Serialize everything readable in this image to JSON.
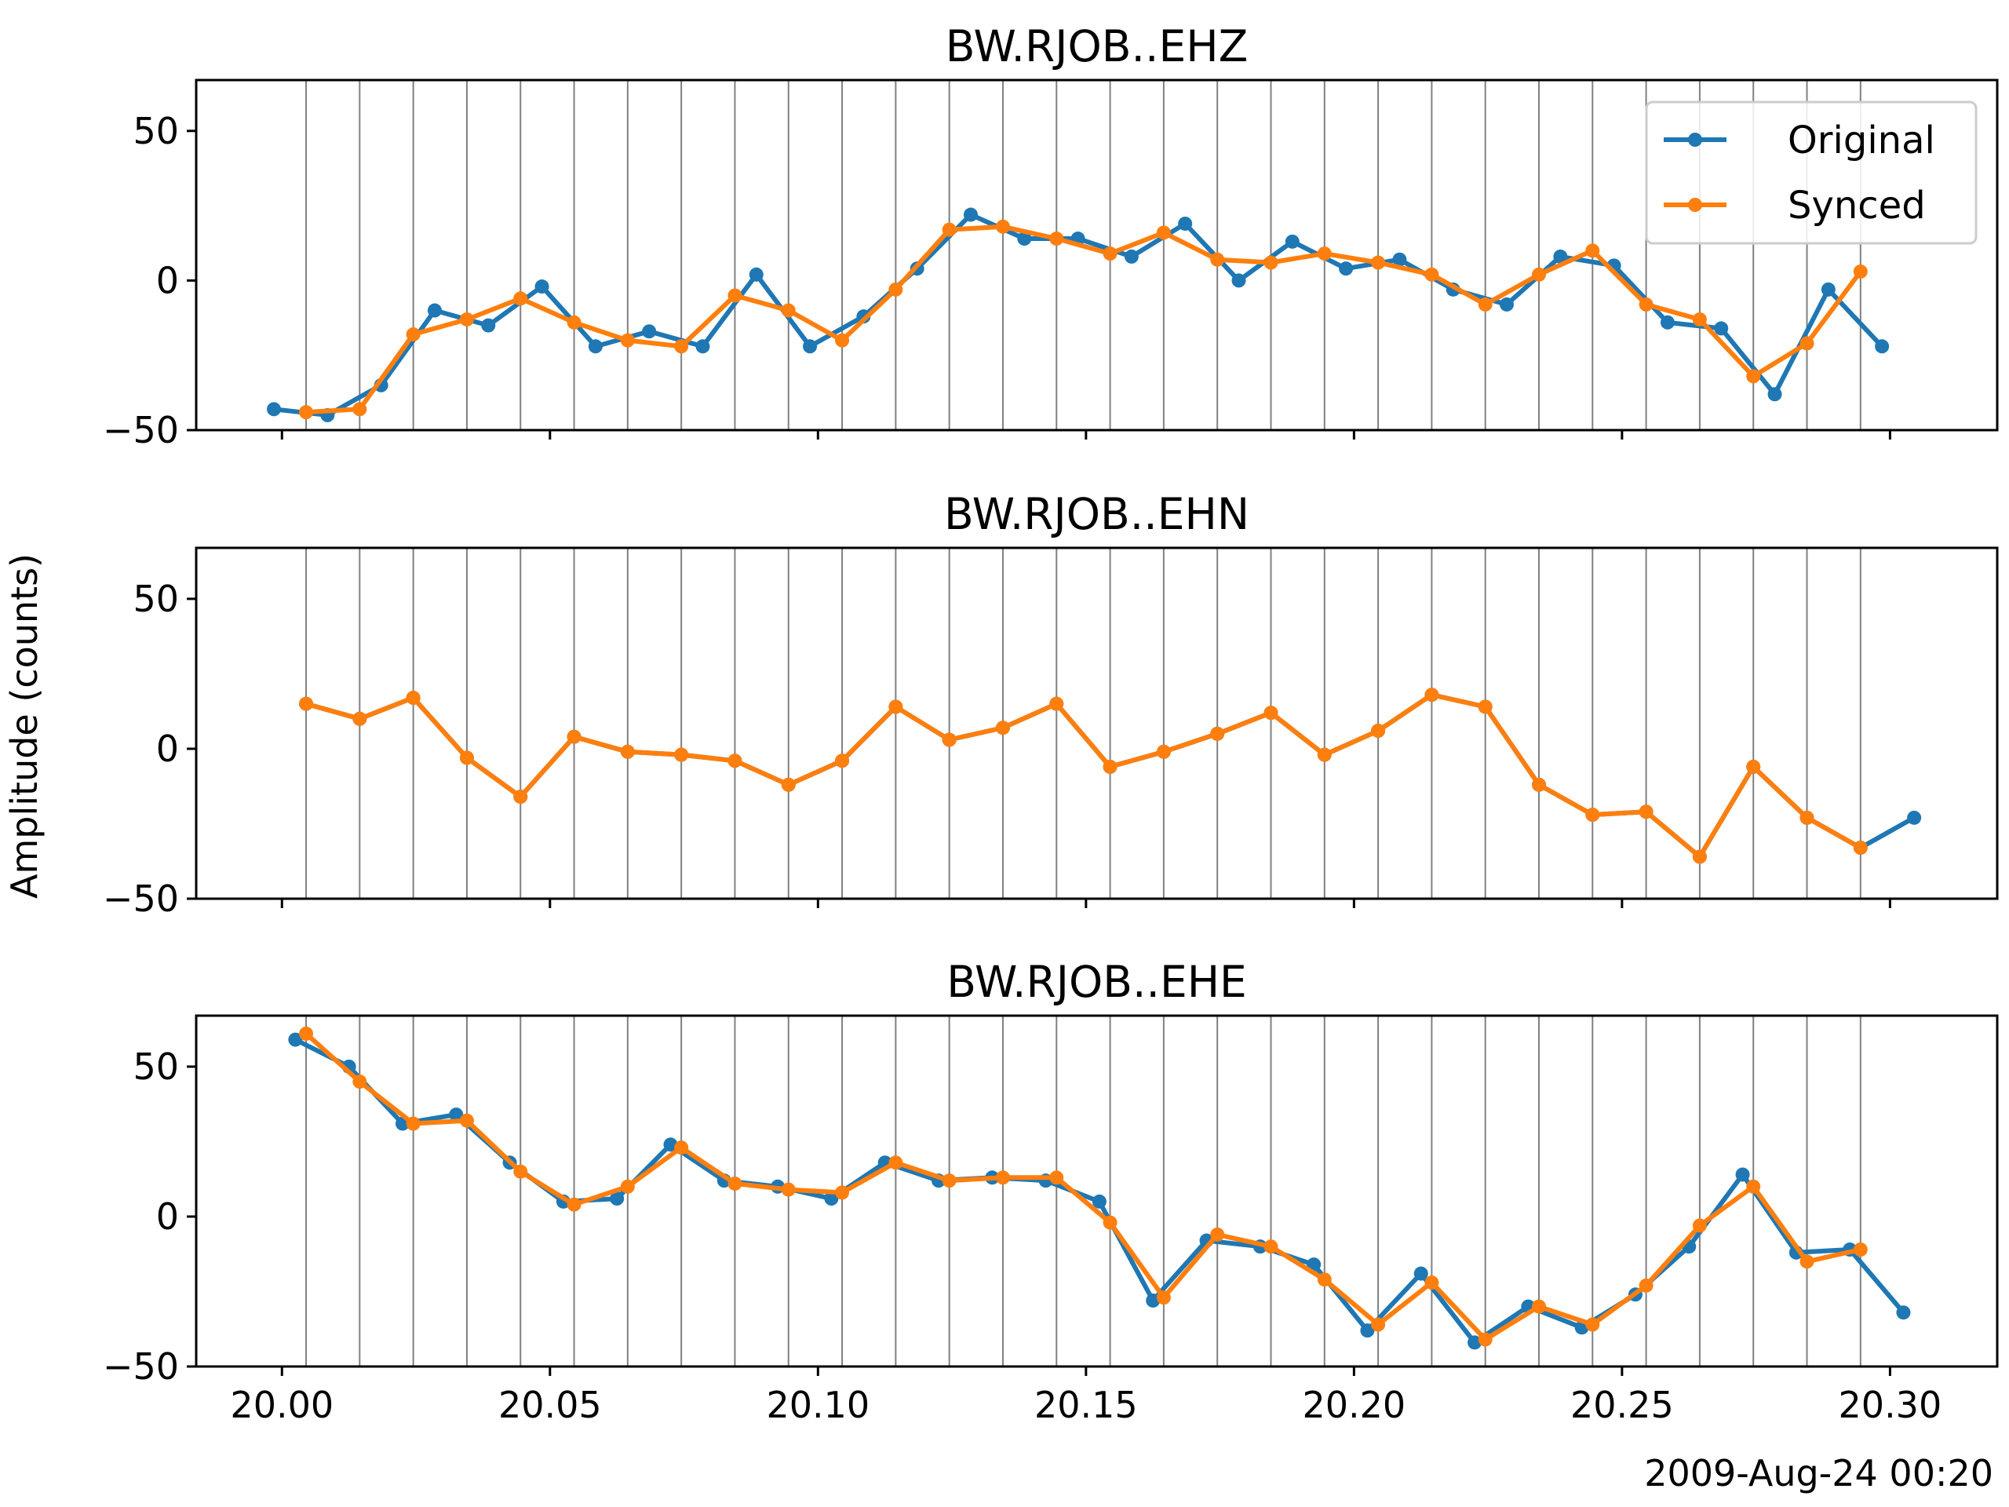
{
  "chart_data": {
    "type": "line",
    "ylabel": "Amplitude (counts)",
    "x_date_label": "2009-Aug-24 00:20",
    "x_ticks": [
      "20.00",
      "20.05",
      "20.10",
      "20.15",
      "20.20",
      "20.25",
      "20.30"
    ],
    "xlim": [
      19.984,
      20.32
    ],
    "ylim": [
      -50,
      67
    ],
    "y_ticks": [
      "50",
      "0",
      "−50"
    ],
    "legend": {
      "placement": "upper-right",
      "entries": [
        "Original",
        "Synced"
      ]
    },
    "colors": {
      "original": "#1f77b4",
      "synced": "#ff7f0e",
      "sync_lines": "#808080"
    },
    "sync_times": [
      20.0045,
      20.0145,
      20.0245,
      20.0345,
      20.0445,
      20.0545,
      20.0645,
      20.0745,
      20.0845,
      20.0945,
      20.1045,
      20.1145,
      20.1245,
      20.1345,
      20.1445,
      20.1545,
      20.1645,
      20.1745,
      20.1845,
      20.1945,
      20.2045,
      20.2145,
      20.2245,
      20.2345,
      20.2445,
      20.2545,
      20.2645,
      20.2745,
      20.2845,
      20.2945
    ],
    "panels": [
      {
        "title": "BW.RJOB..EHZ",
        "series": [
          {
            "name": "Original",
            "x": [
              19.9985,
              20.0085,
              20.0185,
              20.0285,
              20.0385,
              20.0485,
              20.0585,
              20.0685,
              20.0785,
              20.0885,
              20.0985,
              20.1085,
              20.1185,
              20.1285,
              20.1385,
              20.1485,
              20.1585,
              20.1685,
              20.1785,
              20.1885,
              20.1985,
              20.2085,
              20.2185,
              20.2285,
              20.2385,
              20.2485,
              20.2585,
              20.2685,
              20.2785,
              20.2885,
              20.2985
            ],
            "y": [
              -43,
              -45,
              -35,
              -10,
              -15,
              -2,
              -22,
              -17,
              -22,
              2,
              -22,
              -12,
              4,
              22,
              14,
              14,
              8,
              19,
              0,
              13,
              4,
              7,
              -3,
              -8,
              8,
              5,
              -14,
              -16,
              -38,
              -3,
              -22
            ]
          },
          {
            "name": "Synced",
            "x": [
              20.0045,
              20.0145,
              20.0245,
              20.0345,
              20.0445,
              20.0545,
              20.0645,
              20.0745,
              20.0845,
              20.0945,
              20.1045,
              20.1145,
              20.1245,
              20.1345,
              20.1445,
              20.1545,
              20.1645,
              20.1745,
              20.1845,
              20.1945,
              20.2045,
              20.2145,
              20.2245,
              20.2345,
              20.2445,
              20.2545,
              20.2645,
              20.2745,
              20.2845,
              20.2945
            ],
            "y": [
              -44,
              -43,
              -18,
              -13,
              -6,
              -14,
              -20,
              -22,
              -5,
              -10,
              -20,
              -3,
              17,
              18,
              14,
              9,
              16,
              7,
              6,
              9,
              6,
              2,
              -8,
              2,
              10,
              -8,
              -13,
              -32,
              -21,
              3
            ]
          }
        ]
      },
      {
        "title": "BW.RJOB..EHN",
        "series": [
          {
            "name": "Original",
            "x": [
              20.0045,
              20.0145,
              20.0245,
              20.0345,
              20.0445,
              20.0545,
              20.0645,
              20.0745,
              20.0845,
              20.0945,
              20.1045,
              20.1145,
              20.1245,
              20.1345,
              20.1445,
              20.1545,
              20.1645,
              20.1745,
              20.1845,
              20.1945,
              20.2045,
              20.2145,
              20.2245,
              20.2345,
              20.2445,
              20.2545,
              20.2645,
              20.2745,
              20.2845,
              20.2945,
              20.3045
            ],
            "y": [
              15,
              10,
              17,
              -3,
              -16,
              4,
              -1,
              -2,
              -4,
              -12,
              -4,
              14,
              3,
              7,
              15,
              -6,
              -1,
              5,
              12,
              -2,
              6,
              18,
              14,
              -12,
              -22,
              -21,
              -36,
              -6,
              -23,
              -33,
              -23
            ]
          },
          {
            "name": "Synced",
            "x": [
              20.0045,
              20.0145,
              20.0245,
              20.0345,
              20.0445,
              20.0545,
              20.0645,
              20.0745,
              20.0845,
              20.0945,
              20.1045,
              20.1145,
              20.1245,
              20.1345,
              20.1445,
              20.1545,
              20.1645,
              20.1745,
              20.1845,
              20.1945,
              20.2045,
              20.2145,
              20.2245,
              20.2345,
              20.2445,
              20.2545,
              20.2645,
              20.2745,
              20.2845,
              20.2945
            ],
            "y": [
              15,
              10,
              17,
              -3,
              -16,
              4,
              -1,
              -2,
              -4,
              -12,
              -4,
              14,
              3,
              7,
              15,
              -6,
              -1,
              5,
              12,
              -2,
              6,
              18,
              14,
              -12,
              -22,
              -21,
              -36,
              -6,
              -23,
              -33
            ]
          }
        ]
      },
      {
        "title": "BW.RJOB..EHE",
        "series": [
          {
            "name": "Original",
            "x": [
              20.0025,
              20.0125,
              20.0225,
              20.0325,
              20.0425,
              20.0525,
              20.0625,
              20.0725,
              20.0825,
              20.0925,
              20.1025,
              20.1125,
              20.1225,
              20.1325,
              20.1425,
              20.1525,
              20.1625,
              20.1725,
              20.1825,
              20.1925,
              20.2025,
              20.2125,
              20.2225,
              20.2325,
              20.2425,
              20.2525,
              20.2625,
              20.2725,
              20.2825,
              20.2925,
              20.3025
            ],
            "y": [
              59,
              50,
              31,
              34,
              18,
              5,
              6,
              24,
              12,
              10,
              6,
              18,
              12,
              13,
              12,
              5,
              -28,
              -8,
              -10,
              -16,
              -38,
              -19,
              -42,
              -30,
              -37,
              -26,
              -10,
              14,
              -12,
              -11,
              -32
            ]
          },
          {
            "name": "Synced",
            "x": [
              20.0045,
              20.0145,
              20.0245,
              20.0345,
              20.0445,
              20.0545,
              20.0645,
              20.0745,
              20.0845,
              20.0945,
              20.1045,
              20.1145,
              20.1245,
              20.1345,
              20.1445,
              20.1545,
              20.1645,
              20.1745,
              20.1845,
              20.1945,
              20.2045,
              20.2145,
              20.2245,
              20.2345,
              20.2445,
              20.2545,
              20.2645,
              20.2745,
              20.2845,
              20.2945
            ],
            "y": [
              61,
              45,
              31,
              32,
              15,
              4,
              10,
              23,
              11,
              9,
              8,
              18,
              12,
              13,
              13,
              -2,
              -27,
              -6,
              -10,
              -21,
              -36,
              -22,
              -41,
              -30,
              -36,
              -23,
              -3,
              10,
              -15,
              -11
            ]
          }
        ]
      }
    ]
  }
}
